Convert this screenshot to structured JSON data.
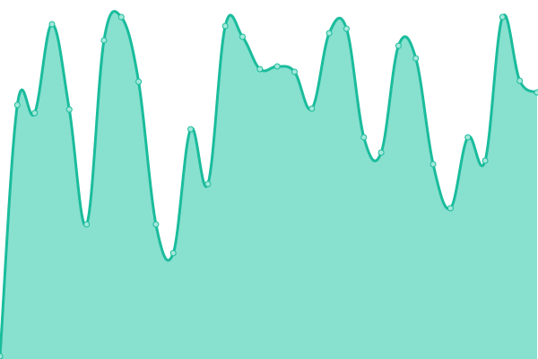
{
  "chart_data": {
    "type": "area",
    "title": "",
    "xlabel": "",
    "ylabel": "",
    "x": [
      0,
      1,
      2,
      3,
      4,
      5,
      6,
      7,
      8,
      9,
      10,
      11,
      12,
      13,
      14,
      15,
      16,
      17,
      18,
      19,
      20,
      21,
      22,
      23,
      24,
      25,
      26,
      27,
      28,
      29,
      30,
      31
    ],
    "values": [
      3,
      283,
      274,
      373,
      278,
      150,
      355,
      381,
      309,
      150,
      118,
      256,
      195,
      371,
      359,
      323,
      326,
      320,
      279,
      363,
      368,
      247,
      230,
      349,
      335,
      217,
      168,
      247,
      221,
      381,
      310,
      297
    ],
    "ylim": [
      0,
      400
    ],
    "grid": false,
    "axes_visible": false,
    "smooth": true,
    "markers": true,
    "colors": {
      "line": "#1abc9c",
      "fill": "#88e0cf",
      "marker_fill": "#a3e8da"
    }
  }
}
